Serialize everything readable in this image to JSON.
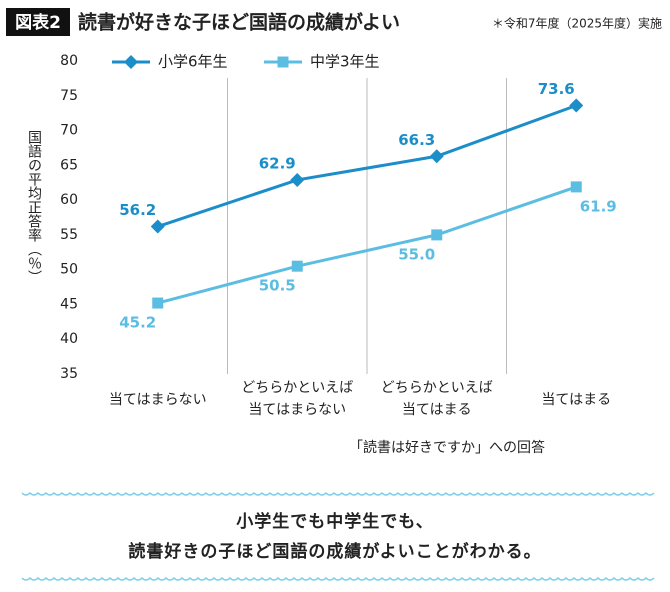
{
  "chart_data": {
    "type": "line",
    "tag": "図表2",
    "title": "読書が好きな子ほど国語の成績がよい",
    "note": "＊令和7年度（2025年度）実施",
    "y_label": "国語の平均正答率（％）",
    "x_label": "「読書は好きですか」への回答",
    "categories": [
      "当てはまらない",
      "どちらかといえば\n当てはまらない",
      "どちらかといえば\n当てはまる",
      "当てはまる"
    ],
    "series": [
      {
        "name": "小学6年生",
        "color": "#1b8dc8",
        "marker": "diamond",
        "values": [
          56.2,
          62.9,
          66.3,
          73.6
        ],
        "value_labels": [
          "56.2",
          "62.9",
          "66.3",
          "73.6"
        ]
      },
      {
        "name": "中学3年生",
        "color": "#5cbde2",
        "marker": "square",
        "values": [
          45.2,
          50.5,
          55.0,
          61.9
        ],
        "value_labels": [
          "45.2",
          "50.5",
          "55.0",
          "61.9"
        ]
      }
    ],
    "ylim": [
      35,
      80
    ],
    "yticks": [
      35,
      40,
      45,
      50,
      55,
      60,
      65,
      70,
      75,
      80
    ],
    "legend": "top-left"
  },
  "conclusion": [
    "小学生でも中学生でも、",
    "読書好きの子ほど国語の成績がよいことがわかる。"
  ]
}
